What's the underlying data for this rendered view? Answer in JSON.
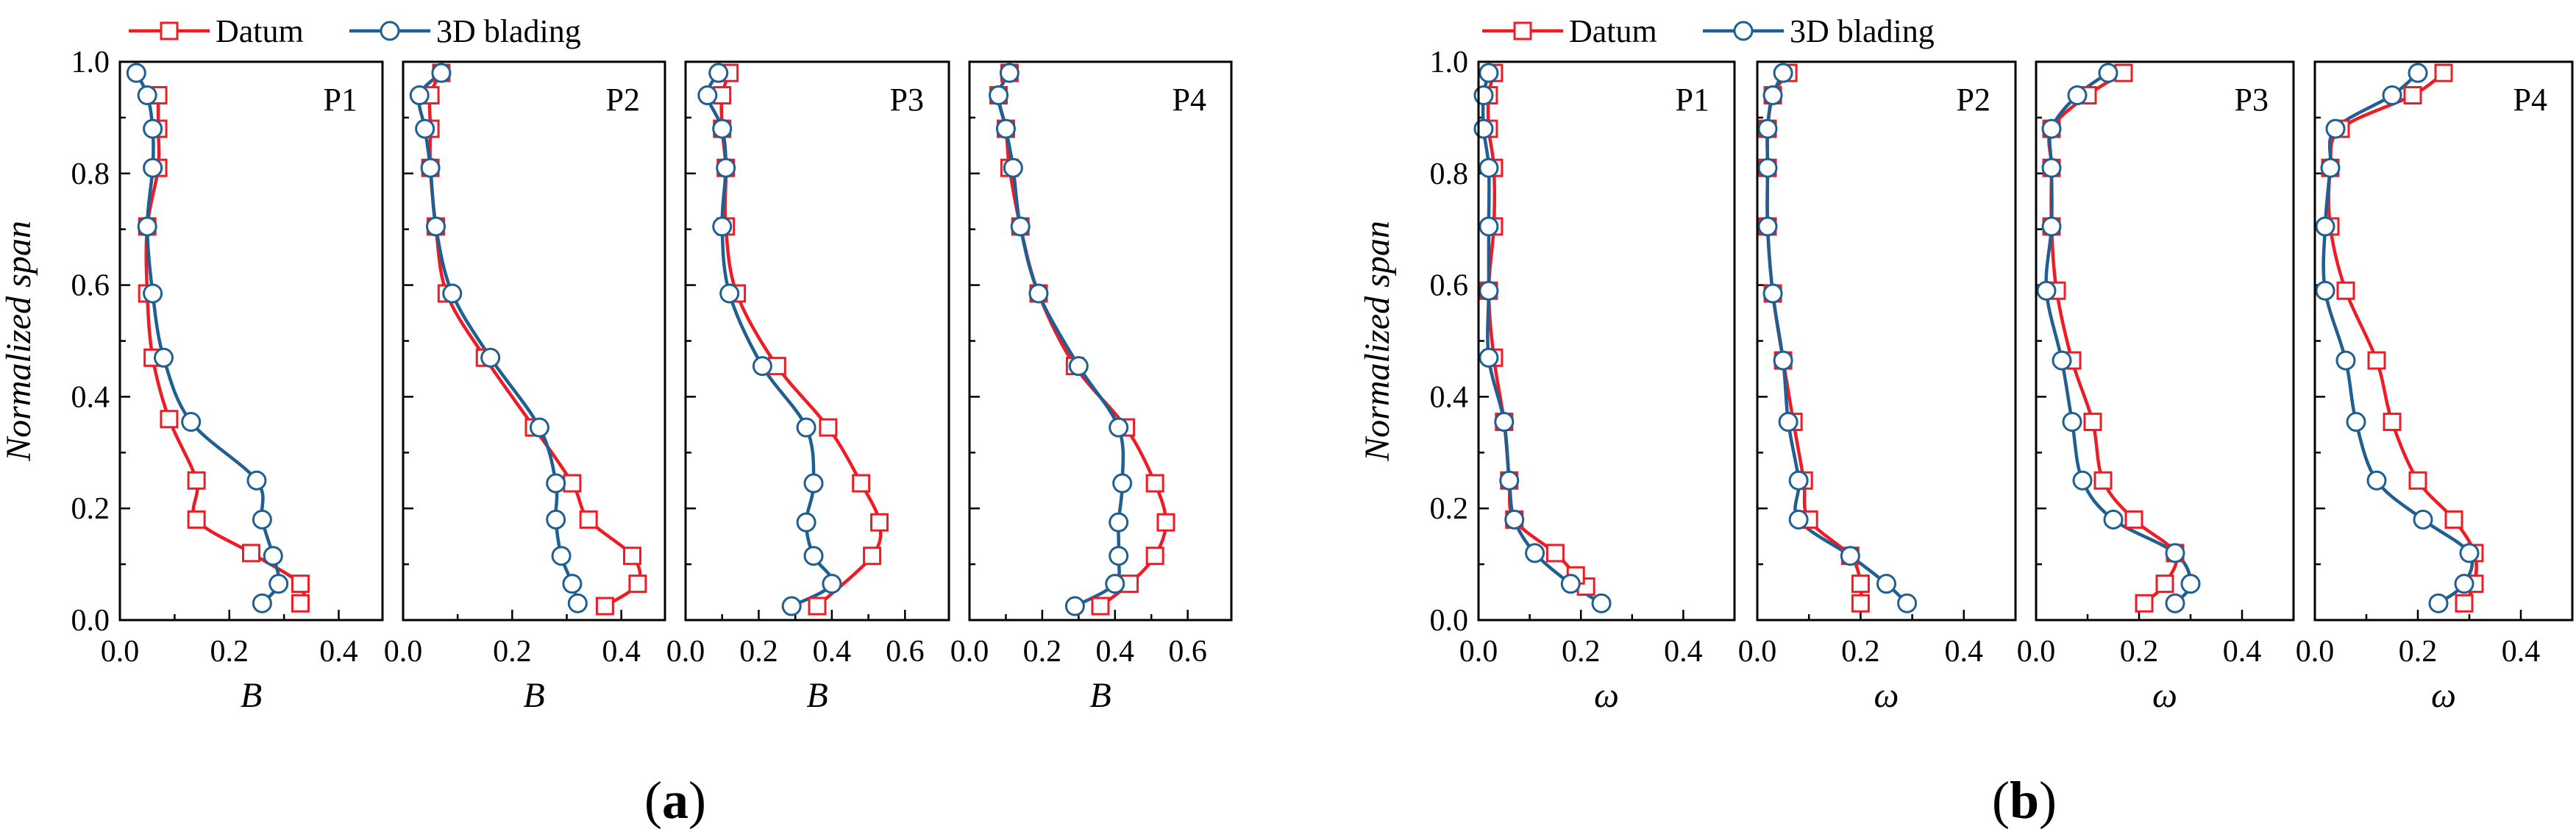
{
  "colors": {
    "datum": "#ee1c25",
    "blading": "#1f5f91"
  },
  "legend": {
    "datum": "Datum",
    "blading": "3D blading"
  },
  "y_axis": {
    "label": "Normalized span",
    "ticks": [
      "0.0",
      "0.2",
      "0.4",
      "0.6",
      "0.8",
      "1.0"
    ]
  },
  "groups": [
    {
      "caption_open": "(",
      "caption_letter": "a",
      "caption_close": ")",
      "xlabel": "B"
    },
    {
      "caption_open": "(",
      "caption_letter": "b",
      "caption_close": ")",
      "xlabel": "ω"
    }
  ],
  "chart_data": [
    {
      "type": "line",
      "group": "a",
      "title": "P1",
      "xlabel": "B",
      "ylabel": "Normalized span",
      "xlim": [
        0,
        0.48
      ],
      "ylim": [
        0,
        1
      ],
      "xticks": [
        0,
        0.2,
        0.4
      ],
      "xtick_labels": [
        "0.0",
        "0.2",
        "0.4"
      ],
      "series": [
        {
          "name": "Datum",
          "marker": "square",
          "x": [
            0.33,
            0.33,
            0.24,
            0.14,
            0.14,
            0.09,
            0.06,
            0.05,
            0.05,
            0.07,
            0.07,
            0.07
          ],
          "y": [
            0.03,
            0.065,
            0.12,
            0.18,
            0.25,
            0.36,
            0.47,
            0.585,
            0.705,
            0.81,
            0.88,
            0.94
          ]
        },
        {
          "name": "3D blading",
          "marker": "circle",
          "x": [
            0.26,
            0.29,
            0.28,
            0.26,
            0.25,
            0.13,
            0.08,
            0.06,
            0.05,
            0.06,
            0.06,
            0.05,
            0.03
          ],
          "y": [
            0.03,
            0.065,
            0.115,
            0.18,
            0.25,
            0.355,
            0.47,
            0.585,
            0.705,
            0.81,
            0.88,
            0.94,
            0.98
          ]
        }
      ]
    },
    {
      "type": "line",
      "group": "a",
      "title": "P2",
      "xlabel": "B",
      "ylabel": "Normalized span",
      "xlim": [
        0,
        0.48
      ],
      "ylim": [
        0,
        1
      ],
      "xticks": [
        0,
        0.2,
        0.4
      ],
      "xtick_labels": [
        "0.0",
        "0.2",
        "0.4"
      ],
      "series": [
        {
          "name": "Datum",
          "marker": "square",
          "x": [
            0.37,
            0.43,
            0.42,
            0.34,
            0.31,
            0.24,
            0.15,
            0.08,
            0.06,
            0.05,
            0.05,
            0.05,
            0.07
          ],
          "y": [
            0.025,
            0.065,
            0.115,
            0.18,
            0.245,
            0.345,
            0.47,
            0.585,
            0.705,
            0.81,
            0.88,
            0.94,
            0.98
          ]
        },
        {
          "name": "3D blading",
          "marker": "circle",
          "x": [
            0.32,
            0.31,
            0.29,
            0.28,
            0.28,
            0.25,
            0.16,
            0.09,
            0.06,
            0.05,
            0.04,
            0.03,
            0.07
          ],
          "y": [
            0.03,
            0.065,
            0.115,
            0.18,
            0.245,
            0.345,
            0.47,
            0.585,
            0.705,
            0.81,
            0.88,
            0.94,
            0.98
          ]
        }
      ]
    },
    {
      "type": "line",
      "group": "a",
      "title": "P3",
      "xlabel": "B",
      "ylabel": "Normalized span",
      "xlim": [
        0,
        0.72
      ],
      "ylim": [
        0,
        1
      ],
      "xticks": [
        0,
        0.2,
        0.4,
        0.6
      ],
      "xtick_labels": [
        "0.0",
        "0.2",
        "0.4",
        "0.6"
      ],
      "series": [
        {
          "name": "Datum",
          "marker": "square",
          "x": [
            0.36,
            0.51,
            0.53,
            0.48,
            0.39,
            0.25,
            0.14,
            0.11,
            0.11,
            0.1,
            0.1,
            0.12
          ],
          "y": [
            0.025,
            0.115,
            0.175,
            0.245,
            0.345,
            0.455,
            0.585,
            0.705,
            0.81,
            0.88,
            0.94,
            0.98
          ]
        },
        {
          "name": "3D blading",
          "marker": "circle",
          "x": [
            0.29,
            0.4,
            0.35,
            0.33,
            0.35,
            0.33,
            0.21,
            0.12,
            0.1,
            0.11,
            0.1,
            0.06,
            0.09
          ],
          "y": [
            0.025,
            0.065,
            0.115,
            0.175,
            0.245,
            0.345,
            0.455,
            0.585,
            0.705,
            0.81,
            0.88,
            0.94,
            0.98
          ]
        }
      ]
    },
    {
      "type": "line",
      "group": "a",
      "title": "P4",
      "xlabel": "B",
      "ylabel": "Normalized span",
      "xlim": [
        0,
        0.72
      ],
      "ylim": [
        0,
        1
      ],
      "xticks": [
        0,
        0.2,
        0.4,
        0.6
      ],
      "xtick_labels": [
        "0.0",
        "0.2",
        "0.4",
        "0.6"
      ],
      "series": [
        {
          "name": "Datum",
          "marker": "square",
          "x": [
            0.36,
            0.44,
            0.51,
            0.54,
            0.51,
            0.43,
            0.29,
            0.19,
            0.14,
            0.11,
            0.1,
            0.08,
            0.11
          ],
          "y": [
            0.025,
            0.065,
            0.115,
            0.175,
            0.245,
            0.345,
            0.455,
            0.585,
            0.705,
            0.81,
            0.88,
            0.94,
            0.98
          ]
        },
        {
          "name": "3D blading",
          "marker": "circle",
          "x": [
            0.29,
            0.4,
            0.41,
            0.41,
            0.42,
            0.41,
            0.3,
            0.19,
            0.14,
            0.12,
            0.1,
            0.08,
            0.11
          ],
          "y": [
            0.025,
            0.065,
            0.115,
            0.175,
            0.245,
            0.345,
            0.455,
            0.585,
            0.705,
            0.81,
            0.88,
            0.94,
            0.98
          ]
        }
      ]
    },
    {
      "type": "line",
      "group": "b",
      "title": "P1",
      "xlabel": "ω",
      "ylabel": "Normalized span",
      "xlim": [
        0,
        0.5
      ],
      "ylim": [
        0,
        1
      ],
      "xticks": [
        0,
        0.2,
        0.4
      ],
      "xtick_labels": [
        "0.0",
        "0.2",
        "0.4"
      ],
      "series": [
        {
          "name": "Datum",
          "marker": "square",
          "x": [
            0.21,
            0.19,
            0.15,
            0.07,
            0.06,
            0.05,
            0.03,
            0.02,
            0.03,
            0.03,
            0.02,
            0.02,
            0.03
          ],
          "y": [
            0.06,
            0.08,
            0.12,
            0.18,
            0.25,
            0.355,
            0.47,
            0.59,
            0.705,
            0.81,
            0.88,
            0.94,
            0.98
          ]
        },
        {
          "name": "3D blading",
          "marker": "circle",
          "x": [
            0.24,
            0.18,
            0.11,
            0.07,
            0.06,
            0.05,
            0.02,
            0.02,
            0.02,
            0.02,
            0.01,
            0.01,
            0.02
          ],
          "y": [
            0.03,
            0.065,
            0.12,
            0.18,
            0.25,
            0.355,
            0.47,
            0.59,
            0.705,
            0.81,
            0.88,
            0.94,
            0.98
          ]
        }
      ]
    },
    {
      "type": "line",
      "group": "b",
      "title": "P2",
      "xlabel": "ω",
      "ylabel": "Normalized span",
      "xlim": [
        0,
        0.5
      ],
      "ylim": [
        0,
        1
      ],
      "xticks": [
        0,
        0.2,
        0.4
      ],
      "xtick_labels": [
        "0.0",
        "0.2",
        "0.4"
      ],
      "series": [
        {
          "name": "Datum",
          "marker": "square",
          "x": [
            0.2,
            0.2,
            0.18,
            0.1,
            0.09,
            0.07,
            0.05,
            0.03,
            0.02,
            0.02,
            0.02,
            0.03,
            0.06
          ],
          "y": [
            0.03,
            0.065,
            0.115,
            0.18,
            0.25,
            0.355,
            0.465,
            0.585,
            0.705,
            0.81,
            0.88,
            0.94,
            0.98
          ]
        },
        {
          "name": "3D blading",
          "marker": "circle",
          "x": [
            0.29,
            0.25,
            0.18,
            0.08,
            0.08,
            0.06,
            0.05,
            0.03,
            0.02,
            0.02,
            0.02,
            0.03,
            0.05
          ],
          "y": [
            0.03,
            0.065,
            0.115,
            0.18,
            0.25,
            0.355,
            0.465,
            0.585,
            0.705,
            0.81,
            0.88,
            0.94,
            0.98
          ]
        }
      ]
    },
    {
      "type": "line",
      "group": "b",
      "title": "P3",
      "xlabel": "ω",
      "ylabel": "Normalized span",
      "xlim": [
        0,
        0.5
      ],
      "ylim": [
        0,
        1
      ],
      "xticks": [
        0,
        0.2,
        0.4
      ],
      "xtick_labels": [
        "0.0",
        "0.2",
        "0.4"
      ],
      "series": [
        {
          "name": "Datum",
          "marker": "square",
          "x": [
            0.21,
            0.25,
            0.27,
            0.19,
            0.13,
            0.11,
            0.07,
            0.04,
            0.03,
            0.03,
            0.03,
            0.1,
            0.17
          ],
          "y": [
            0.03,
            0.065,
            0.12,
            0.18,
            0.25,
            0.355,
            0.465,
            0.59,
            0.705,
            0.81,
            0.88,
            0.94,
            0.98
          ]
        },
        {
          "name": "3D blading",
          "marker": "circle",
          "x": [
            0.27,
            0.3,
            0.27,
            0.15,
            0.09,
            0.07,
            0.05,
            0.02,
            0.03,
            0.03,
            0.03,
            0.08,
            0.14
          ],
          "y": [
            0.03,
            0.065,
            0.12,
            0.18,
            0.25,
            0.355,
            0.465,
            0.59,
            0.705,
            0.81,
            0.88,
            0.94,
            0.98
          ]
        }
      ]
    },
    {
      "type": "line",
      "group": "b",
      "title": "P4",
      "xlabel": "ω",
      "ylabel": "Normalized span",
      "xlim": [
        0,
        0.5
      ],
      "ylim": [
        0,
        1
      ],
      "xticks": [
        0,
        0.2,
        0.4
      ],
      "xtick_labels": [
        "0.0",
        "0.2",
        "0.4"
      ],
      "series": [
        {
          "name": "Datum",
          "marker": "square",
          "x": [
            0.29,
            0.31,
            0.31,
            0.27,
            0.2,
            0.15,
            0.12,
            0.06,
            0.03,
            0.03,
            0.05,
            0.19,
            0.25
          ],
          "y": [
            0.03,
            0.065,
            0.12,
            0.18,
            0.25,
            0.355,
            0.465,
            0.59,
            0.705,
            0.81,
            0.88,
            0.94,
            0.98
          ]
        },
        {
          "name": "3D blading",
          "marker": "circle",
          "x": [
            0.24,
            0.29,
            0.3,
            0.21,
            0.12,
            0.08,
            0.06,
            0.02,
            0.02,
            0.03,
            0.04,
            0.15,
            0.2
          ],
          "y": [
            0.03,
            0.065,
            0.12,
            0.18,
            0.25,
            0.355,
            0.465,
            0.59,
            0.705,
            0.81,
            0.88,
            0.94,
            0.98
          ]
        }
      ]
    }
  ]
}
